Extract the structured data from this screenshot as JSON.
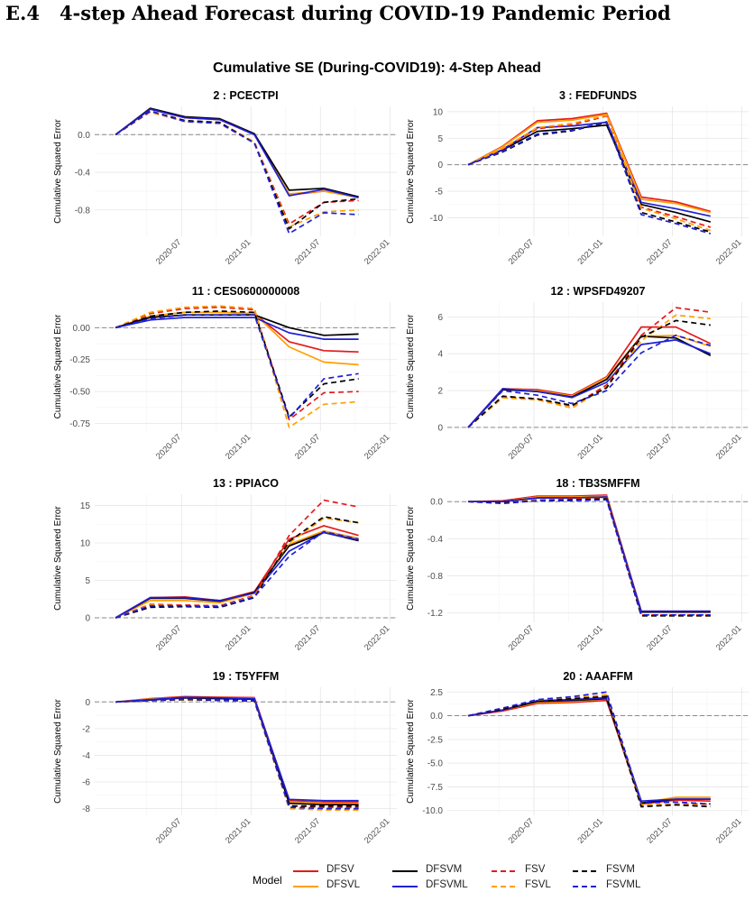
{
  "section": {
    "number": "E.4",
    "title": "4-step Ahead Forecast during COVID-19 Pandemic Period"
  },
  "figure_title": "Cumulative SE (During-COVID19): 4-Step Ahead",
  "ylabel": "Cumulative Squared Error",
  "x_ticks": [
    "2020-07",
    "2021-01",
    "2021-07",
    "2022-01"
  ],
  "x_tick_positions": [
    1.9,
    3.9,
    5.9,
    7.9
  ],
  "legend": {
    "title": "Model",
    "placement": "bottom",
    "items": [
      {
        "label": "DFSV",
        "color": "#e41a1c",
        "dash": "solid"
      },
      {
        "label": "DFSVL",
        "color": "#ff9f00",
        "dash": "solid"
      },
      {
        "label": "DFSVM",
        "color": "#000000",
        "dash": "solid"
      },
      {
        "label": "DFSVML",
        "color": "#1f1fd6",
        "dash": "solid"
      },
      {
        "label": "FSV",
        "color": "#e41a1c",
        "dash": "dashed"
      },
      {
        "label": "FSVL",
        "color": "#ff9f00",
        "dash": "dashed"
      },
      {
        "label": "FSVM",
        "color": "#000000",
        "dash": "dashed"
      },
      {
        "label": "FSVML",
        "color": "#1f1fd6",
        "dash": "dashed"
      }
    ]
  },
  "chart_data": [
    {
      "type": "line",
      "title": "2 : PCECTPI",
      "x": [
        0,
        1,
        2,
        3,
        4,
        5,
        6,
        7
      ],
      "xlim": [
        -0.6,
        8.1
      ],
      "ylim": [
        -1.08,
        0.3
      ],
      "yticks": [
        0.0,
        -0.4,
        -0.8
      ],
      "ytick_labels": [
        "0.0",
        "-0.4",
        "-0.8"
      ],
      "series": [
        {
          "name": "DFSV",
          "values": [
            0,
            0.27,
            0.18,
            0.16,
            0.0,
            -0.64,
            -0.6,
            -0.66
          ]
        },
        {
          "name": "DFSVL",
          "values": [
            0,
            0.27,
            0.18,
            0.16,
            0.0,
            -0.63,
            -0.6,
            -0.67
          ]
        },
        {
          "name": "DFSVM",
          "values": [
            0,
            0.28,
            0.19,
            0.17,
            0.01,
            -0.59,
            -0.57,
            -0.66
          ]
        },
        {
          "name": "DFSVML",
          "values": [
            0,
            0.27,
            0.18,
            0.16,
            0.0,
            -0.65,
            -0.58,
            -0.67
          ]
        },
        {
          "name": "FSV",
          "values": [
            0,
            0.24,
            0.14,
            0.13,
            -0.08,
            -0.95,
            -0.72,
            -0.7
          ]
        },
        {
          "name": "FSVL",
          "values": [
            0,
            0.24,
            0.14,
            0.13,
            -0.08,
            -0.98,
            -0.82,
            -0.8
          ]
        },
        {
          "name": "FSVM",
          "values": [
            0,
            0.25,
            0.15,
            0.13,
            -0.09,
            -1.0,
            -0.72,
            -0.68
          ]
        },
        {
          "name": "FSVML",
          "values": [
            0,
            0.25,
            0.14,
            0.12,
            -0.09,
            -1.05,
            -0.83,
            -0.85
          ]
        }
      ]
    },
    {
      "type": "line",
      "title": "3 : FEDFUNDS",
      "x": [
        0,
        1,
        2,
        3,
        4,
        5,
        6,
        7
      ],
      "xlim": [
        -0.6,
        8.1
      ],
      "ylim": [
        -13.5,
        11
      ],
      "yticks": [
        10,
        5,
        0,
        -5,
        -10
      ],
      "ytick_labels": [
        "10",
        "5",
        "0",
        "-5",
        "-10"
      ],
      "series": [
        {
          "name": "DFSV",
          "values": [
            0,
            3.5,
            8.3,
            8.7,
            9.7,
            -6.1,
            -7.0,
            -8.8
          ]
        },
        {
          "name": "DFSVL",
          "values": [
            0,
            3.4,
            8.0,
            8.4,
            9.5,
            -6.5,
            -7.3,
            -9.0
          ]
        },
        {
          "name": "DFSVM",
          "values": [
            0,
            2.8,
            6.3,
            6.8,
            7.5,
            -7.5,
            -9.0,
            -10.8
          ]
        },
        {
          "name": "DFSVML",
          "values": [
            0,
            2.9,
            7.0,
            7.3,
            8.0,
            -7.1,
            -8.3,
            -9.7
          ]
        },
        {
          "name": "FSV",
          "values": [
            0,
            3.0,
            6.8,
            7.5,
            9.2,
            -8.0,
            -9.8,
            -11.8
          ]
        },
        {
          "name": "FSVL",
          "values": [
            0,
            3.1,
            7.0,
            7.8,
            9.3,
            -8.2,
            -10.2,
            -12.4
          ]
        },
        {
          "name": "FSVM",
          "values": [
            0,
            2.4,
            5.6,
            6.4,
            8.0,
            -9.0,
            -10.8,
            -12.7
          ]
        },
        {
          "name": "FSVML",
          "values": [
            0,
            2.5,
            5.8,
            6.5,
            8.1,
            -9.4,
            -11.1,
            -13.0
          ]
        }
      ]
    },
    {
      "type": "line",
      "title": "11 : CES0600000008",
      "x": [
        0,
        1,
        2,
        3,
        4,
        5,
        6,
        7
      ],
      "xlim": [
        -0.6,
        8.1
      ],
      "ylim": [
        -0.81,
        0.2
      ],
      "yticks": [
        0.0,
        -0.25,
        -0.5,
        -0.75
      ],
      "ytick_labels": [
        "0.00",
        "-0.25",
        "-0.50",
        "-0.75"
      ],
      "series": [
        {
          "name": "DFSV",
          "values": [
            0,
            0.09,
            0.12,
            0.12,
            0.11,
            -0.11,
            -0.18,
            -0.19
          ]
        },
        {
          "name": "DFSVL",
          "values": [
            0,
            0.09,
            0.12,
            0.12,
            0.11,
            -0.15,
            -0.27,
            -0.29
          ]
        },
        {
          "name": "DFSVM",
          "values": [
            0,
            0.08,
            0.1,
            0.1,
            0.1,
            0.0,
            -0.06,
            -0.05
          ]
        },
        {
          "name": "DFSVML",
          "values": [
            0,
            0.06,
            0.08,
            0.08,
            0.08,
            -0.04,
            -0.09,
            -0.09
          ]
        },
        {
          "name": "FSV",
          "values": [
            0,
            0.11,
            0.15,
            0.16,
            0.14,
            -0.72,
            -0.51,
            -0.5
          ]
        },
        {
          "name": "FSVL",
          "values": [
            0,
            0.12,
            0.16,
            0.17,
            0.15,
            -0.78,
            -0.6,
            -0.58
          ]
        },
        {
          "name": "FSVM",
          "values": [
            0,
            0.09,
            0.12,
            0.13,
            0.12,
            -0.7,
            -0.44,
            -0.4
          ]
        },
        {
          "name": "FSVML",
          "values": [
            0,
            0.07,
            0.1,
            0.1,
            0.1,
            -0.71,
            -0.4,
            -0.36
          ]
        }
      ]
    },
    {
      "type": "line",
      "title": "12 : WPSFD49207",
      "x": [
        0,
        1,
        2,
        3,
        4,
        5,
        6,
        7
      ],
      "xlim": [
        -0.6,
        8.1
      ],
      "ylim": [
        -0.2,
        6.8
      ],
      "yticks": [
        0,
        2,
        4,
        6
      ],
      "ytick_labels": [
        "0",
        "2",
        "4",
        "6"
      ],
      "series": [
        {
          "name": "DFSV",
          "values": [
            0,
            2.1,
            2.05,
            1.75,
            2.75,
            5.45,
            5.45,
            4.55
          ]
        },
        {
          "name": "DFSVL",
          "values": [
            0,
            2.1,
            2.0,
            1.7,
            2.7,
            4.95,
            5.0,
            4.4
          ]
        },
        {
          "name": "DFSVM",
          "values": [
            0,
            2.05,
            1.95,
            1.65,
            2.6,
            4.95,
            4.85,
            3.9
          ]
        },
        {
          "name": "DFSVML",
          "values": [
            0,
            2.1,
            1.95,
            1.62,
            2.45,
            4.5,
            4.75,
            4.0
          ]
        },
        {
          "name": "FSV",
          "values": [
            0,
            1.65,
            1.55,
            1.15,
            2.3,
            5.0,
            6.5,
            6.25
          ]
        },
        {
          "name": "FSVL",
          "values": [
            0,
            1.6,
            1.5,
            1.05,
            2.2,
            4.7,
            6.1,
            5.9
          ]
        },
        {
          "name": "FSVM",
          "values": [
            0,
            1.7,
            1.55,
            1.2,
            2.15,
            4.9,
            5.8,
            5.55
          ]
        },
        {
          "name": "FSVML",
          "values": [
            0,
            2.0,
            1.75,
            1.3,
            2.0,
            4.05,
            5.0,
            4.45
          ]
        }
      ]
    },
    {
      "type": "line",
      "title": "13 : PPIACO",
      "x": [
        0,
        1,
        2,
        3,
        4,
        5,
        6,
        7
      ],
      "xlim": [
        -0.6,
        8.1
      ],
      "ylim": [
        -0.6,
        16.5
      ],
      "yticks": [
        0,
        5,
        10,
        15
      ],
      "ytick_labels": [
        "0",
        "5",
        "10",
        "15"
      ],
      "series": [
        {
          "name": "DFSV",
          "values": [
            0,
            2.7,
            2.8,
            2.3,
            3.5,
            10.5,
            12.3,
            11.0
          ]
        },
        {
          "name": "DFSVL",
          "values": [
            0,
            2.3,
            2.3,
            2.0,
            3.3,
            9.8,
            11.6,
            10.6
          ]
        },
        {
          "name": "DFSVM",
          "values": [
            0,
            2.6,
            2.6,
            2.2,
            3.4,
            9.6,
            11.4,
            10.3
          ]
        },
        {
          "name": "DFSVML",
          "values": [
            0,
            2.7,
            2.7,
            2.3,
            3.3,
            8.9,
            11.4,
            10.4
          ]
        },
        {
          "name": "FSV",
          "values": [
            0,
            1.8,
            1.7,
            1.6,
            3.0,
            11.0,
            15.7,
            14.8
          ]
        },
        {
          "name": "FSVL",
          "values": [
            0,
            1.7,
            1.6,
            1.5,
            2.9,
            10.0,
            13.3,
            12.7
          ]
        },
        {
          "name": "FSVM",
          "values": [
            0,
            1.4,
            1.5,
            1.4,
            2.7,
            10.2,
            13.5,
            12.7
          ]
        },
        {
          "name": "FSVML",
          "values": [
            0,
            1.6,
            1.6,
            1.5,
            2.8,
            8.2,
            11.5,
            10.5
          ]
        }
      ]
    },
    {
      "type": "line",
      "title": "18 : TB3SMFFM",
      "x": [
        0,
        1,
        2,
        3,
        4,
        5,
        6,
        7
      ],
      "xlim": [
        -0.6,
        8.1
      ],
      "ylim": [
        -1.3,
        0.08
      ],
      "yticks": [
        0.0,
        -0.4,
        -0.8,
        -1.2
      ],
      "ytick_labels": [
        "0.0",
        "-0.4",
        "-0.8",
        "-1.2"
      ],
      "series": [
        {
          "name": "DFSV",
          "values": [
            0,
            0.01,
            0.06,
            0.06,
            0.07,
            -1.18,
            -1.18,
            -1.18
          ]
        },
        {
          "name": "DFSVL",
          "values": [
            0,
            0.0,
            0.05,
            0.05,
            0.06,
            -1.18,
            -1.18,
            -1.18
          ]
        },
        {
          "name": "DFSVM",
          "values": [
            0,
            0.0,
            0.04,
            0.04,
            0.05,
            -1.19,
            -1.19,
            -1.19
          ]
        },
        {
          "name": "DFSVML",
          "values": [
            0,
            0.0,
            0.04,
            0.04,
            0.05,
            -1.18,
            -1.18,
            -1.18
          ]
        },
        {
          "name": "FSV",
          "values": [
            0,
            -0.01,
            0.02,
            0.03,
            0.04,
            -1.22,
            -1.22,
            -1.22
          ]
        },
        {
          "name": "FSVL",
          "values": [
            0,
            -0.01,
            0.02,
            0.02,
            0.03,
            -1.23,
            -1.23,
            -1.23
          ]
        },
        {
          "name": "FSVM",
          "values": [
            0,
            -0.01,
            0.01,
            0.02,
            0.03,
            -1.23,
            -1.23,
            -1.23
          ]
        },
        {
          "name": "FSVML",
          "values": [
            0,
            -0.02,
            0.01,
            0.01,
            0.02,
            -1.22,
            -1.22,
            -1.22
          ]
        }
      ]
    },
    {
      "type": "line",
      "title": "19 : T5YFFM",
      "x": [
        0,
        1,
        2,
        3,
        4,
        5,
        6,
        7
      ],
      "xlim": [
        -0.6,
        8.1
      ],
      "ylim": [
        -8.5,
        1.1
      ],
      "yticks": [
        0,
        -2,
        -4,
        -6,
        -8
      ],
      "ytick_labels": [
        "0",
        "-2",
        "-4",
        "-6",
        "-8"
      ],
      "series": [
        {
          "name": "DFSV",
          "values": [
            0,
            0.25,
            0.4,
            0.35,
            0.32,
            -7.4,
            -7.5,
            -7.5
          ]
        },
        {
          "name": "DFSVL",
          "values": [
            0,
            0.22,
            0.35,
            0.3,
            0.28,
            -7.5,
            -7.6,
            -7.6
          ]
        },
        {
          "name": "DFSVM",
          "values": [
            0,
            0.15,
            0.3,
            0.25,
            0.2,
            -7.6,
            -7.7,
            -7.7
          ]
        },
        {
          "name": "DFSVML",
          "values": [
            0,
            0.18,
            0.35,
            0.3,
            0.25,
            -7.3,
            -7.4,
            -7.4
          ]
        },
        {
          "name": "FSV",
          "values": [
            0,
            0.1,
            0.2,
            0.15,
            0.1,
            -7.8,
            -7.9,
            -7.9
          ]
        },
        {
          "name": "FSVL",
          "values": [
            0,
            0.08,
            0.15,
            0.1,
            0.05,
            -8.0,
            -8.1,
            -8.1
          ]
        },
        {
          "name": "FSVM",
          "values": [
            0,
            0.1,
            0.18,
            0.12,
            0.08,
            -7.8,
            -7.8,
            -7.8
          ]
        },
        {
          "name": "FSVML",
          "values": [
            0,
            0.12,
            0.2,
            0.15,
            0.1,
            -7.9,
            -8.0,
            -8.0
          ]
        }
      ]
    },
    {
      "type": "line",
      "title": "20 : AAAFFM",
      "x": [
        0,
        1,
        2,
        3,
        4,
        5,
        6,
        7
      ],
      "xlim": [
        -0.6,
        8.1
      ],
      "ylim": [
        -10.5,
        3.0
      ],
      "yticks": [
        2.5,
        0.0,
        -2.5,
        -5.0,
        -7.5,
        -10.0
      ],
      "ytick_labels": [
        "2.5",
        "0.0",
        "-2.5",
        "-5.0",
        "-7.5",
        "-10.0"
      ],
      "series": [
        {
          "name": "DFSV",
          "values": [
            0,
            0.5,
            1.3,
            1.4,
            1.6,
            -9.3,
            -8.9,
            -9.0
          ]
        },
        {
          "name": "DFSVL",
          "values": [
            0,
            0.6,
            1.4,
            1.5,
            1.8,
            -9.2,
            -8.6,
            -8.6
          ]
        },
        {
          "name": "DFSVM",
          "values": [
            0,
            0.6,
            1.5,
            1.6,
            1.8,
            -9.2,
            -8.8,
            -8.8
          ]
        },
        {
          "name": "DFSVML",
          "values": [
            0,
            0.6,
            1.6,
            1.7,
            1.9,
            -9.0,
            -8.8,
            -8.8
          ]
        },
        {
          "name": "FSV",
          "values": [
            0,
            0.7,
            1.5,
            1.8,
            2.1,
            -9.5,
            -9.3,
            -9.3
          ]
        },
        {
          "name": "FSVL",
          "values": [
            0,
            0.8,
            1.6,
            1.9,
            2.2,
            -9.4,
            -9.3,
            -9.5
          ]
        },
        {
          "name": "FSVM",
          "values": [
            0,
            0.7,
            1.5,
            1.8,
            2.0,
            -9.6,
            -9.4,
            -9.6
          ]
        },
        {
          "name": "FSVML",
          "values": [
            0,
            0.8,
            1.7,
            2.0,
            2.5,
            -9.2,
            -9.1,
            -9.3
          ]
        }
      ]
    }
  ]
}
